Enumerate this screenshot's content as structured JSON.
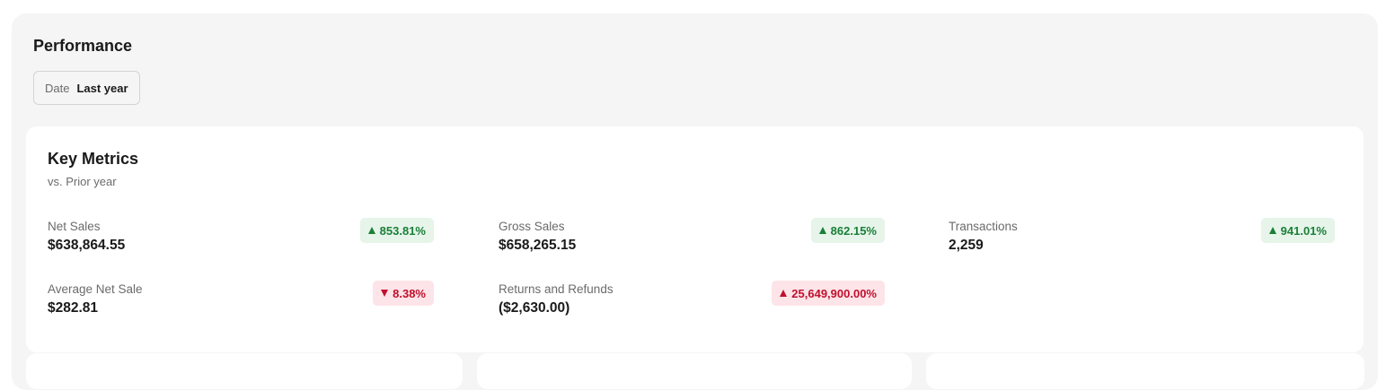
{
  "header": {
    "title": "Performance"
  },
  "filter": {
    "label": "Date",
    "value": "Last year"
  },
  "key_metrics": {
    "title": "Key Metrics",
    "subtitle": "vs. Prior year",
    "metrics": [
      {
        "label": "Net Sales",
        "value": "$638,864.55",
        "change": "853.81%",
        "direction": "up",
        "tone": "positive",
        "color": "#1a7f37"
      },
      {
        "label": "Gross Sales",
        "value": "$658,265.15",
        "change": "862.15%",
        "direction": "up",
        "tone": "positive",
        "color": "#1a7f37"
      },
      {
        "label": "Transactions",
        "value": "2,259",
        "change": "941.01%",
        "direction": "up",
        "tone": "positive",
        "color": "#1a7f37"
      },
      {
        "label": "Average Net Sale",
        "value": "$282.81",
        "change": "8.38%",
        "direction": "down",
        "tone": "negative",
        "color": "#c0102d"
      },
      {
        "label": "Returns and Refunds",
        "value": "($2,630.00)",
        "change": "25,649,900.00%",
        "direction": "up",
        "tone": "negative",
        "color": "#c0102d"
      }
    ]
  }
}
